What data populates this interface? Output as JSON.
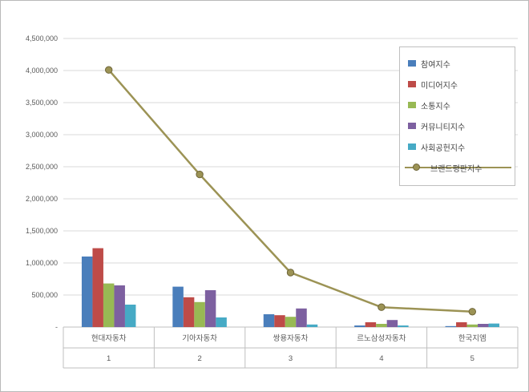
{
  "chart_data": {
    "type": "bar+line",
    "categories": [
      "현대자동차",
      "기아자동차",
      "쌍용자동차",
      "르노삼성자동차",
      "한국지엠"
    ],
    "category_ranks": [
      "1",
      "2",
      "3",
      "4",
      "5"
    ],
    "bar_series": [
      {
        "name": "참여지수",
        "color": "#4a7ebb",
        "values": [
          1100000,
          630000,
          200000,
          25000,
          15000
        ]
      },
      {
        "name": "미디어지수",
        "color": "#be4b48",
        "values": [
          1230000,
          465000,
          185000,
          75000,
          75000
        ]
      },
      {
        "name": "소통지수",
        "color": "#98b954",
        "values": [
          680000,
          390000,
          160000,
          50000,
          40000
        ]
      },
      {
        "name": "커뮤니티지수",
        "color": "#7d60a0",
        "values": [
          650000,
          575000,
          290000,
          110000,
          50000
        ]
      },
      {
        "name": "사회공헌지수",
        "color": "#46aac5",
        "values": [
          350000,
          150000,
          40000,
          25000,
          55000
        ]
      }
    ],
    "line_series": {
      "name": "브랜드평판지수",
      "color": "#9c9355",
      "marker_stroke": "#6e6539",
      "values": [
        4010000,
        2380000,
        850000,
        310000,
        240000
      ]
    },
    "y_axis": {
      "min": 0,
      "max": 4500000,
      "step": 500000,
      "tick_labels": [
        "-",
        "500,000",
        "1,000,000",
        "1,500,000",
        "2,000,000",
        "2,500,000",
        "3,000,000",
        "3,500,000",
        "4,000,000",
        "4,500,000"
      ]
    },
    "grid": true,
    "legend_position": "top-right",
    "colors": {
      "gridline": "#d9d9d9",
      "axis_line": "#bfbfbf",
      "tick_text": "#595959"
    }
  }
}
